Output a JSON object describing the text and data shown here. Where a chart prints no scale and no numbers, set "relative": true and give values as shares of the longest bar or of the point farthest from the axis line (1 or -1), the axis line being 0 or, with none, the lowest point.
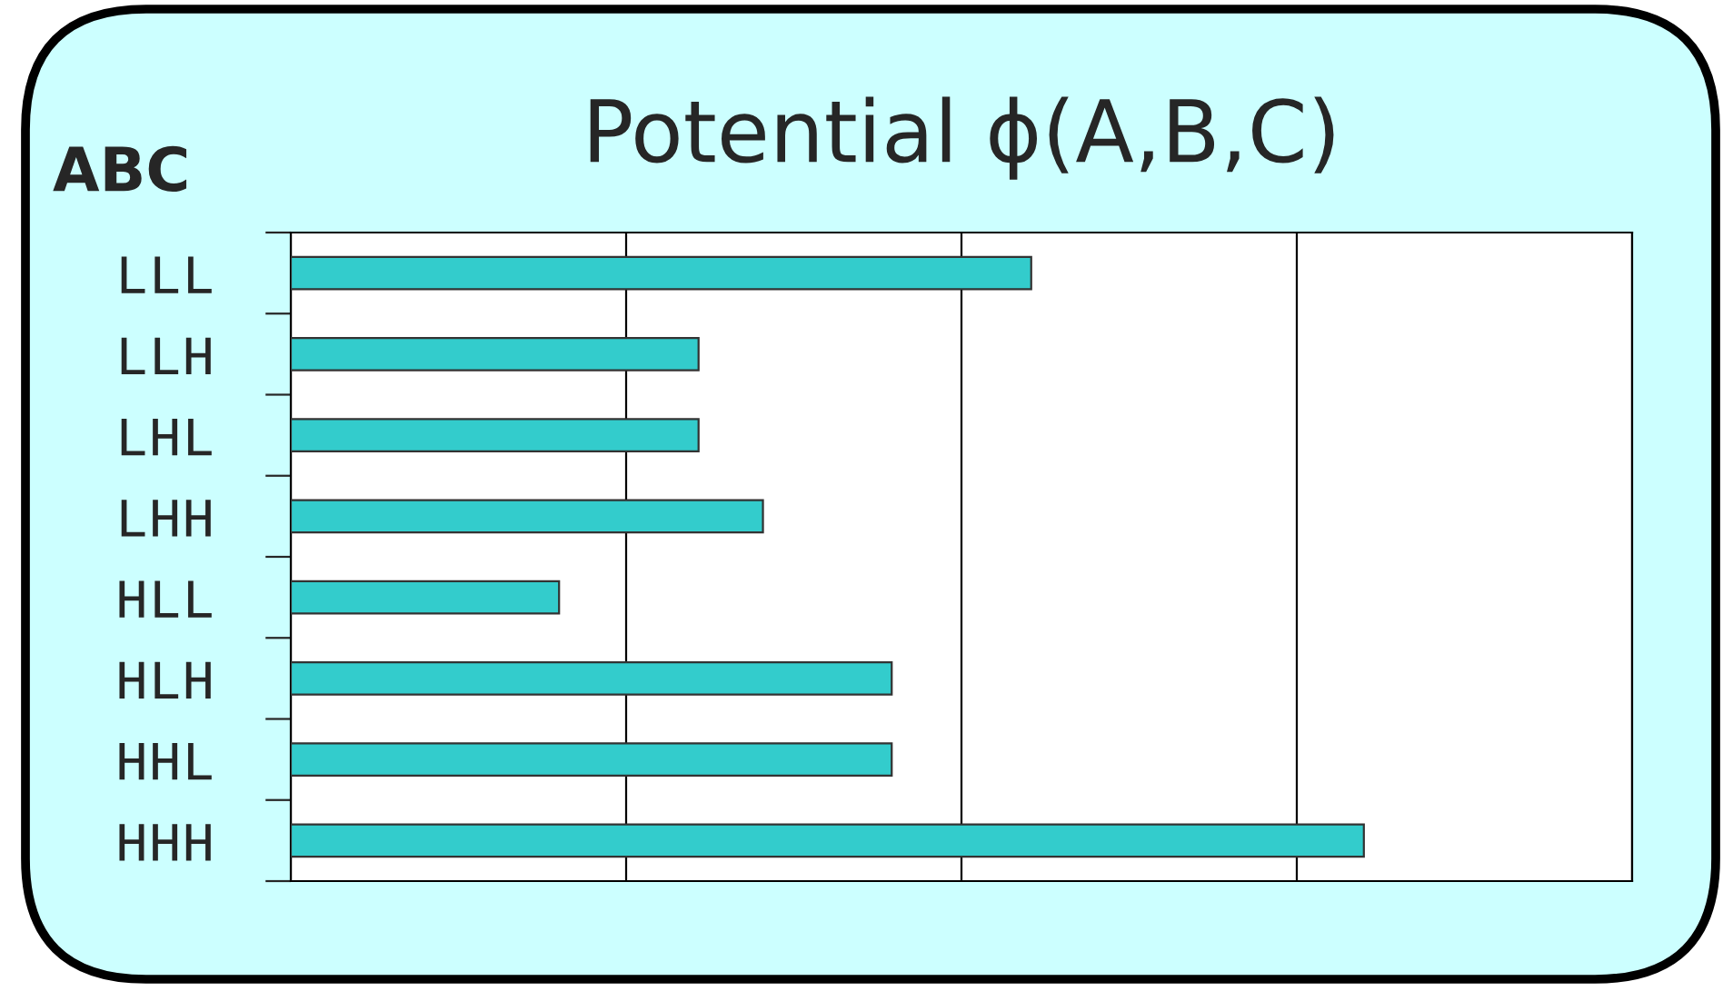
{
  "chart_data": {
    "type": "bar",
    "orientation": "horizontal",
    "relative": true,
    "title": "Potential ϕ(A,B,C)",
    "ylabel": "ABC",
    "categories": [
      "LLL",
      "LLH",
      "LHL",
      "LHH",
      "HLL",
      "HLH",
      "HHL",
      "HHH"
    ],
    "values": [
      0.69,
      0.38,
      0.38,
      0.44,
      0.25,
      0.56,
      0.56,
      1.0
    ],
    "color": "#33cccc",
    "grid": "x",
    "legend": false
  }
}
